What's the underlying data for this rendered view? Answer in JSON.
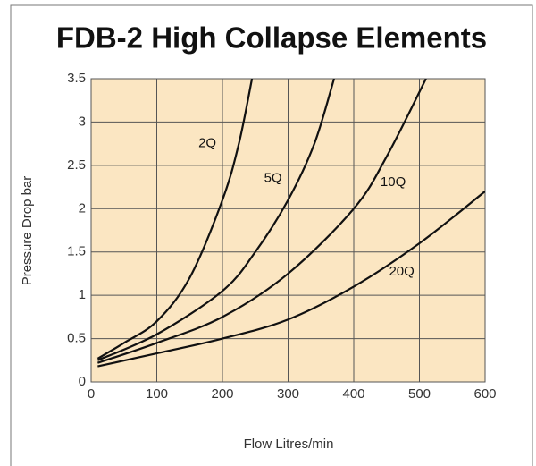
{
  "chart_data": {
    "type": "line",
    "title": "FDB-2 High Collapse Elements",
    "x_label": "Flow Litres/min",
    "y_label": "Pressure Drop bar",
    "xlim": [
      0,
      600
    ],
    "ylim": [
      0,
      3.5
    ],
    "xticks": [
      0,
      100,
      200,
      300,
      400,
      500,
      600
    ],
    "yticks": [
      0,
      0.5,
      1,
      1.5,
      2,
      2.5,
      3,
      3.5
    ],
    "grid": true,
    "series": [
      {
        "name": "2Q",
        "color": "#111111",
        "x": [
          10,
          50,
          100,
          150,
          200,
          225,
          245
        ],
        "values": [
          0.27,
          0.45,
          0.7,
          1.2,
          2.1,
          2.75,
          3.5
        ]
      },
      {
        "name": "5Q",
        "color": "#111111",
        "x": [
          10,
          100,
          200,
          250,
          300,
          340,
          370
        ],
        "values": [
          0.25,
          0.55,
          1.05,
          1.5,
          2.1,
          2.75,
          3.5
        ]
      },
      {
        "name": "10Q",
        "color": "#111111",
        "x": [
          10,
          100,
          200,
          300,
          400,
          450,
          510
        ],
        "values": [
          0.22,
          0.45,
          0.75,
          1.25,
          2.0,
          2.6,
          3.5
        ]
      },
      {
        "name": "20Q",
        "color": "#111111",
        "x": [
          10,
          100,
          200,
          300,
          400,
          500,
          600
        ],
        "values": [
          0.18,
          0.33,
          0.5,
          0.72,
          1.1,
          1.6,
          2.2
        ]
      }
    ]
  }
}
